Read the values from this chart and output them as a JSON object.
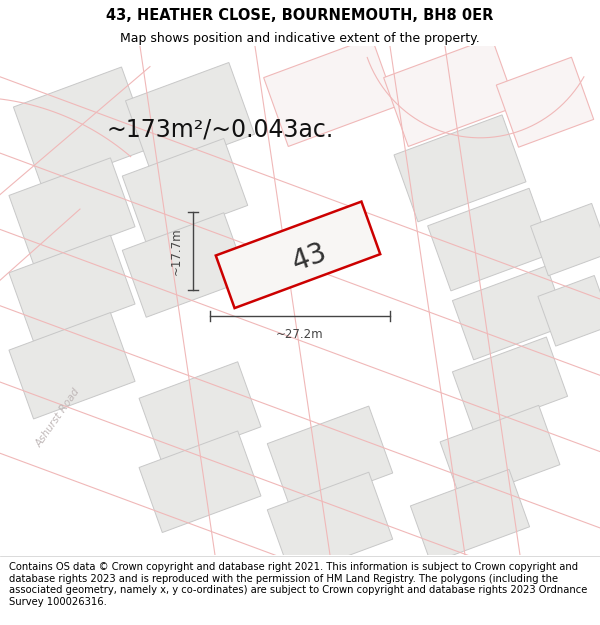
{
  "title_line1": "43, HEATHER CLOSE, BOURNEMOUTH, BH8 0ER",
  "title_line2": "Map shows position and indicative extent of the property.",
  "footer_text": "Contains OS data © Crown copyright and database right 2021. This information is subject to Crown copyright and database rights 2023 and is reproduced with the permission of HM Land Registry. The polygons (including the associated geometry, namely x, y co-ordinates) are subject to Crown copyright and database rights 2023 Ordnance Survey 100026316.",
  "area_text": "~173m²/~0.043ac.",
  "property_number": "43",
  "width_label": "~27.2m",
  "height_label": "~17.7m",
  "bg_color": "#f7f6f4",
  "property_fill": "#f0efed",
  "property_edge": "#cc0000",
  "neighbor_fill": "#e8e8e6",
  "neighbor_edge": "#c8c8c8",
  "road_line_color": "#f0b8b8",
  "road_fill_color": "#f9f4f4",
  "road_text_color": "#c0b8b8",
  "title_fontsize": 10.5,
  "subtitle_fontsize": 9,
  "footer_fontsize": 7.2,
  "area_fontsize": 17,
  "number_fontsize": 20,
  "label_fontsize": 8.5,
  "arrow_color": "#444444"
}
